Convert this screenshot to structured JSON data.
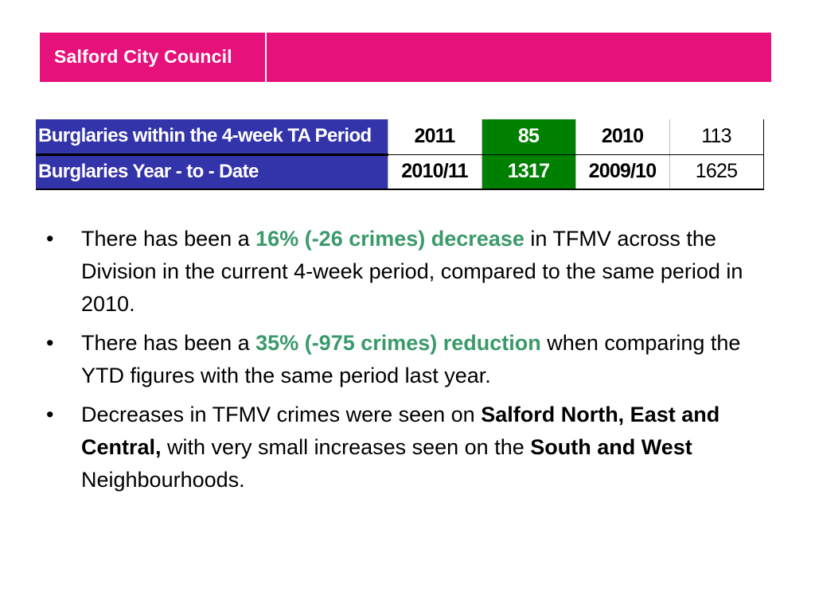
{
  "header": {
    "org_name": "Salford City Council",
    "brand_color": "#e6117a"
  },
  "table": {
    "rows": [
      {
        "label": "Burglaries within the 4-week TA Period",
        "current_period": "2011",
        "current_value": "85",
        "previous_period": "2010",
        "previous_value": "113"
      },
      {
        "label": "Burglaries Year - to - Date",
        "current_period": "2010/11",
        "current_value": "1317",
        "previous_period": "2009/10",
        "previous_value": "1625"
      }
    ],
    "label_bg_color": "#3333aa",
    "highlight_color": "#008000"
  },
  "bullets": {
    "b1": {
      "pre": "There has been a ",
      "highlight": "16% (-26 crimes) decrease",
      "post": " in TFMV across the Division in the current 4-week period, compared to the same period in 2010."
    },
    "b2": {
      "pre": "There has been a ",
      "highlight": "35% (-975 crimes) reduction",
      "post": " when comparing the YTD figures with the same period last year."
    },
    "b3": {
      "pre": "Decreases in TFMV crimes were seen on ",
      "bold1": "Salford North, East and Central,",
      "mid": " with very small increases seen on the ",
      "bold2": "South and West",
      "post": " Neighbourhoods."
    },
    "marker": "•",
    "highlight_color": "#3a9a6a"
  }
}
